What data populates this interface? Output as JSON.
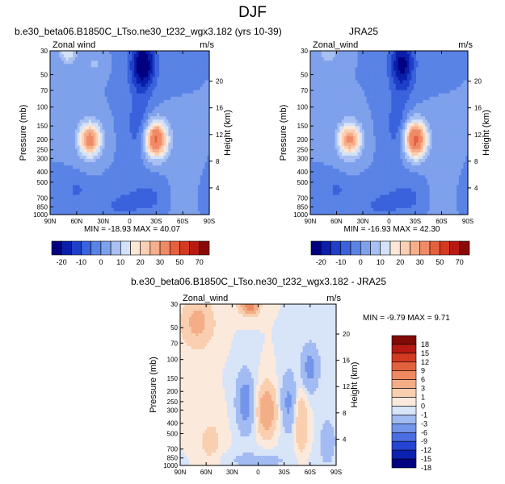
{
  "title": "DJF",
  "palette": {
    "model_obs": [
      "#000080",
      "#0a1ea8",
      "#1e3fc8",
      "#3a62dc",
      "#5a83e6",
      "#7fa1ec",
      "#a8c0f2",
      "#d4e2f8",
      "#fde8d8",
      "#fbcfb3",
      "#f6ae8c",
      "#f08a66",
      "#e5603f",
      "#d43a22",
      "#b81a12",
      "#8a0a08"
    ],
    "difference": [
      "#000080",
      "#0a22b0",
      "#2545d2",
      "#4b6ee2",
      "#7395ea",
      "#a2bbf2",
      "#d8e4f8",
      "#fbeadc",
      "#f9cfb0",
      "#f4ae87",
      "#ee8a62",
      "#e3623e",
      "#d23a22",
      "#b41a12",
      "#7f0a06"
    ]
  },
  "chart_data": [
    {
      "type": "contour",
      "name": "model",
      "title": "b.e30_beta06.B1850C_LTso.ne30_t232_wgx3.182 (yrs 10-39)",
      "subtitle_left": "Zonal wind",
      "subtitle_right": "m/s",
      "xlabel": "",
      "ylabel": "Pressure (mb)",
      "ylabel_right": "Height (km)",
      "x_ticks": [
        "90N",
        "60N",
        "30N",
        "0",
        "30S",
        "60S",
        "90S"
      ],
      "y_ticks": [
        "30",
        "50",
        "70",
        "100",
        "150",
        "200",
        "250",
        "300",
        "400",
        "500",
        "700",
        "850",
        "1000"
      ],
      "y_ticks_right": [
        "20",
        "16",
        "12",
        "8",
        "4"
      ],
      "min_max_label": "MIN = -18.93   MAX = 40.07",
      "min": -18.93,
      "max": 40.07,
      "cbar_levels": [
        -25,
        -20,
        -15,
        -10,
        -5,
        0,
        5,
        10,
        15,
        20,
        25,
        30,
        40,
        50,
        60,
        70
      ],
      "cbar_labels": [
        "-20",
        "-10",
        "0",
        "10",
        "20",
        "30",
        "50",
        "70"
      ],
      "features": [
        {
          "lat": -30,
          "p": 200,
          "sx": 9,
          "sy": 0.27,
          "amp": 42
        },
        {
          "lat": 45,
          "p": 200,
          "sx": 9,
          "sy": 0.25,
          "amp": 34
        },
        {
          "lat": 70,
          "p": 30,
          "sx": 7,
          "sy": 0.2,
          "amp": 15
        },
        {
          "lat": 40,
          "p": 40,
          "sx": 6,
          "sy": 0.15,
          "amp": 6
        },
        {
          "lat": -15,
          "p": 40,
          "sx": 10,
          "sy": 0.4,
          "amp": -26
        },
        {
          "lat": -10,
          "p": 150,
          "sx": 10,
          "sy": 0.5,
          "amp": -8
        },
        {
          "lat": -20,
          "p": 700,
          "sx": 25,
          "sy": 0.3,
          "amp": -6
        },
        {
          "lat": 15,
          "p": 850,
          "sx": 15,
          "sy": 0.2,
          "amp": -4
        },
        {
          "lat": 60,
          "p": 600,
          "sx": 8,
          "sy": 0.2,
          "amp": -6
        },
        {
          "lat": -55,
          "p": 700,
          "sx": 10,
          "sy": 0.4,
          "amp": 5
        }
      ]
    },
    {
      "type": "contour",
      "name": "obs",
      "title": "JRA25",
      "subtitle_left": "Zonal_wind",
      "subtitle_right": "m/s",
      "xlabel": "",
      "ylabel": "Pressure (mb)",
      "ylabel_right": "Height (km)",
      "x_ticks": [
        "90N",
        "60N",
        "30N",
        "0",
        "30S",
        "60S",
        "90S"
      ],
      "y_ticks": [
        "30",
        "50",
        "70",
        "100",
        "150",
        "200",
        "250",
        "300",
        "400",
        "500",
        "700",
        "850",
        "1000"
      ],
      "y_ticks_right": [
        "20",
        "16",
        "12",
        "8",
        "4"
      ],
      "min_max_label": "MIN = -16.93   MAX = 42.30",
      "min": -16.93,
      "max": 42.3,
      "cbar_levels": [
        -25,
        -20,
        -15,
        -10,
        -5,
        0,
        5,
        10,
        15,
        20,
        25,
        30,
        40,
        50,
        60,
        70
      ],
      "cbar_labels": [
        "-20",
        "-10",
        "0",
        "10",
        "20",
        "30",
        "50",
        "70"
      ],
      "features": [
        {
          "lat": -30,
          "p": 200,
          "sx": 9,
          "sy": 0.27,
          "amp": 44
        },
        {
          "lat": 45,
          "p": 200,
          "sx": 9,
          "sy": 0.25,
          "amp": 32
        },
        {
          "lat": 70,
          "p": 30,
          "sx": 7,
          "sy": 0.2,
          "amp": 10
        },
        {
          "lat": -15,
          "p": 40,
          "sx": 10,
          "sy": 0.4,
          "amp": -22
        },
        {
          "lat": -10,
          "p": 150,
          "sx": 10,
          "sy": 0.5,
          "amp": -8
        },
        {
          "lat": -20,
          "p": 700,
          "sx": 25,
          "sy": 0.3,
          "amp": -6
        },
        {
          "lat": 15,
          "p": 850,
          "sx": 15,
          "sy": 0.2,
          "amp": -4
        },
        {
          "lat": 60,
          "p": 600,
          "sx": 8,
          "sy": 0.2,
          "amp": -6
        },
        {
          "lat": -55,
          "p": 700,
          "sx": 10,
          "sy": 0.4,
          "amp": 5
        }
      ]
    },
    {
      "type": "contour",
      "name": "difference",
      "title": "b.e30_beta06.B1850C_LTso.ne30_t232_wgx3.182 - JRA25",
      "subtitle_left": "Zonal_wind",
      "subtitle_right": "m/s",
      "xlabel": "",
      "ylabel": "Pressure (mb)",
      "ylabel_right": "Height (km)",
      "x_ticks": [
        "90N",
        "60N",
        "30N",
        "0",
        "30S",
        "60S",
        "90S"
      ],
      "y_ticks": [
        "30",
        "50",
        "70",
        "100",
        "150",
        "200",
        "250",
        "300",
        "400",
        "500",
        "700",
        "850",
        "1000"
      ],
      "y_ticks_right": [
        "20",
        "16",
        "12",
        "8",
        "4"
      ],
      "min_max_label": "MIN = -9.79   MAX =  9.71",
      "min": -9.79,
      "max": 9.71,
      "cbar_levels": [
        -18,
        -15,
        -12,
        -9,
        -6,
        -3,
        -1,
        0,
        1,
        3,
        6,
        9,
        12,
        15,
        18
      ],
      "cbar_labels": [
        "18",
        "15",
        "12",
        "9",
        "6",
        "3",
        "1",
        "0",
        "-1",
        "-3",
        "-6",
        "-9",
        "-12",
        "-15",
        "-18"
      ],
      "features": [
        {
          "lat": -10,
          "p": 300,
          "sx": 7,
          "sy": 0.35,
          "amp": 6
        },
        {
          "lat": 70,
          "p": 45,
          "sx": 12,
          "sy": 0.35,
          "amp": 4
        },
        {
          "lat": 10,
          "p": 30,
          "sx": 7,
          "sy": 0.15,
          "amp": 9
        },
        {
          "lat": 15,
          "p": 250,
          "sx": 7,
          "sy": 0.45,
          "amp": -4.5
        },
        {
          "lat": -35,
          "p": 250,
          "sx": 6,
          "sy": 0.45,
          "amp": -3.5
        },
        {
          "lat": -60,
          "p": 120,
          "sx": 7,
          "sy": 0.35,
          "amp": -4
        },
        {
          "lat": -50,
          "p": 400,
          "sx": 5,
          "sy": 0.45,
          "amp": 3
        },
        {
          "lat": -80,
          "p": 600,
          "sx": 6,
          "sy": 0.3,
          "amp": -3
        },
        {
          "lat": 0,
          "p": 900,
          "sx": 30,
          "sy": 0.15,
          "amp": -1.5
        },
        {
          "lat": 55,
          "p": 600,
          "sx": 10,
          "sy": 0.4,
          "amp": 1.5
        }
      ]
    }
  ]
}
